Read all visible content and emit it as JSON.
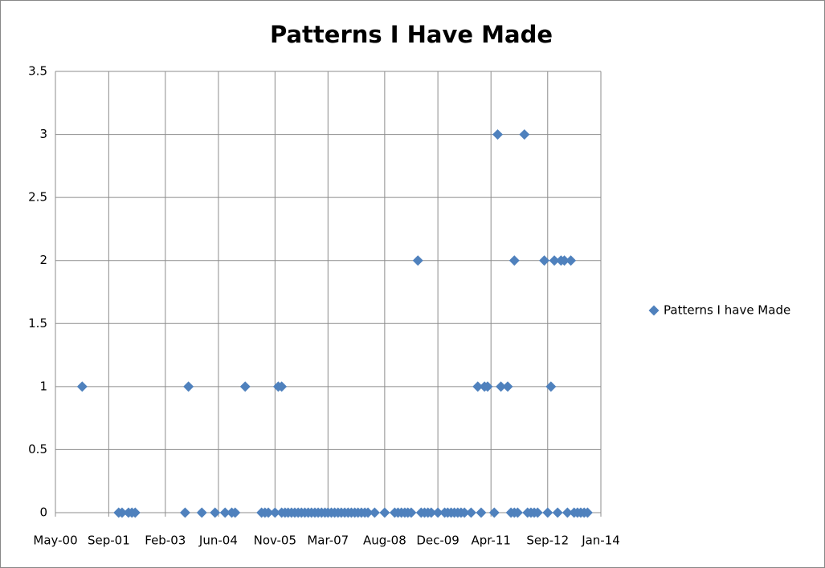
{
  "chart_data": {
    "type": "scatter",
    "title": "Patterns I Have Made",
    "x": [
      "2001-01",
      "2001-12",
      "2002-01",
      "2002-03",
      "2002-04",
      "2002-05",
      "2003-08",
      "2003-09",
      "2004-01",
      "2004-05",
      "2004-08",
      "2004-10",
      "2004-11",
      "2005-02",
      "2005-07",
      "2005-08",
      "2005-09",
      "2005-11",
      "2005-12",
      "2006-01",
      "2006-01",
      "2006-02",
      "2006-03",
      "2006-04",
      "2006-05",
      "2006-06",
      "2006-07",
      "2006-08",
      "2006-09",
      "2006-10",
      "2006-11",
      "2006-12",
      "2007-01",
      "2007-02",
      "2007-03",
      "2007-04",
      "2007-05",
      "2007-06",
      "2007-07",
      "2007-08",
      "2007-09",
      "2007-10",
      "2007-11",
      "2007-12",
      "2008-01",
      "2008-02",
      "2008-03",
      "2008-05",
      "2008-08",
      "2008-11",
      "2008-12",
      "2009-01",
      "2009-02",
      "2009-03",
      "2009-04",
      "2009-06",
      "2009-07",
      "2009-08",
      "2009-09",
      "2009-10",
      "2009-12",
      "2010-02",
      "2010-03",
      "2010-04",
      "2010-05",
      "2010-06",
      "2010-07",
      "2010-08",
      "2010-10",
      "2010-12",
      "2011-01",
      "2011-02",
      "2011-03",
      "2011-05",
      "2011-06",
      "2011-07",
      "2011-09",
      "2011-10",
      "2011-11",
      "2011-11",
      "2011-12",
      "2012-02",
      "2012-03",
      "2012-04",
      "2012-05",
      "2012-06",
      "2012-08",
      "2012-09",
      "2012-10",
      "2012-11",
      "2012-12",
      "2013-01",
      "2013-02",
      "2013-03",
      "2013-04",
      "2013-05",
      "2013-06",
      "2013-07",
      "2013-08",
      "2013-09"
    ],
    "series": [
      {
        "name": "Patterns I have Made",
        "color": "#4f81bd",
        "values": [
          1,
          0,
          0,
          0,
          0,
          0,
          0,
          1,
          0,
          0,
          0,
          0,
          0,
          1,
          0,
          0,
          0,
          0,
          1,
          1,
          0,
          0,
          0,
          0,
          0,
          0,
          0,
          0,
          0,
          0,
          0,
          0,
          0,
          0,
          0,
          0,
          0,
          0,
          0,
          0,
          0,
          0,
          0,
          0,
          0,
          0,
          0,
          0,
          0,
          0,
          0,
          0,
          0,
          0,
          0,
          2,
          0,
          0,
          0,
          0,
          0,
          0,
          0,
          0,
          0,
          0,
          0,
          0,
          0,
          1,
          0,
          1,
          1,
          0,
          3,
          1,
          1,
          0,
          2,
          0,
          0,
          3,
          0,
          0,
          0,
          0,
          2,
          0,
          1,
          2,
          0,
          2,
          2,
          0,
          2,
          0,
          0,
          0,
          0,
          0
        ]
      }
    ],
    "xlim": [
      "2000-05",
      "2014-01"
    ],
    "xticks": [
      {
        "value": "2000-05",
        "label": "May-00"
      },
      {
        "value": "2001-09",
        "label": "Sep-01"
      },
      {
        "value": "2003-02",
        "label": "Feb-03"
      },
      {
        "value": "2004-06",
        "label": "Jun-04"
      },
      {
        "value": "2005-11",
        "label": "Nov-05"
      },
      {
        "value": "2007-03",
        "label": "Mar-07"
      },
      {
        "value": "2008-08",
        "label": "Aug-08"
      },
      {
        "value": "2009-12",
        "label": "Dec-09"
      },
      {
        "value": "2011-04",
        "label": "Apr-11"
      },
      {
        "value": "2012-09",
        "label": "Sep-12"
      },
      {
        "value": "2014-01",
        "label": "Jan-14"
      }
    ],
    "ylim": [
      0,
      3.5
    ],
    "yticks": [
      0,
      0.5,
      1,
      1.5,
      2,
      2.5,
      3,
      3.5
    ],
    "grid": true,
    "legend": "right"
  }
}
